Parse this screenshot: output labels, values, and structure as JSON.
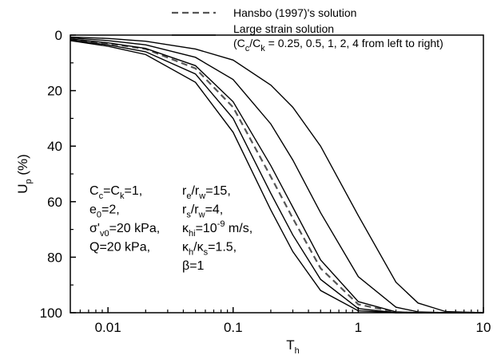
{
  "chart_data": {
    "type": "line",
    "xlog": true,
    "yinvert": true,
    "xlabel": [
      {
        "text": "T"
      },
      {
        "sub": "h"
      }
    ],
    "ylabel": [
      {
        "text": "U"
      },
      {
        "sub": "p"
      },
      {
        "text": " (%)"
      }
    ],
    "xlim": [
      0.005,
      10
    ],
    "ylim": [
      0,
      100
    ],
    "xticks": [
      0.01,
      0.1,
      1,
      10
    ],
    "yticks": [
      0,
      20,
      40,
      60,
      80,
      100
    ],
    "xminorticks": [
      0.006,
      0.007,
      0.008,
      0.009,
      0.02,
      0.03,
      0.04,
      0.05,
      0.06,
      0.07,
      0.08,
      0.09,
      0.2,
      0.3,
      0.4,
      0.5,
      0.6,
      0.7,
      0.8,
      0.9,
      2,
      3,
      4,
      5,
      6,
      7,
      8,
      9
    ],
    "yminorticks": [
      10,
      30,
      50,
      70,
      90
    ],
    "x": [
      0.005,
      0.01,
      0.02,
      0.05,
      0.1,
      0.2,
      0.3,
      0.5,
      1,
      2,
      3,
      5,
      10
    ],
    "series": [
      {
        "color": "#555555",
        "dashed": true,
        "values": [
          1.5,
          3,
          5,
          12,
          26,
          51,
          66,
          84,
          97,
          99.8,
          100,
          100,
          100
        ]
      },
      {
        "color": "#000000",
        "dashed": false,
        "values": [
          2,
          4,
          7,
          17,
          35,
          63,
          78,
          92,
          99.3,
          100,
          100,
          100,
          100
        ]
      },
      {
        "color": "#000000",
        "dashed": false,
        "values": [
          1.8,
          3.5,
          6,
          14,
          30,
          57,
          72,
          88,
          98.5,
          100,
          100,
          100,
          100
        ]
      },
      {
        "color": "#000000",
        "dashed": false,
        "values": [
          1.4,
          2.8,
          4.8,
          11,
          24,
          47,
          62,
          81,
          96,
          99.7,
          100,
          100,
          100
        ]
      },
      {
        "color": "#000000",
        "dashed": false,
        "values": [
          1,
          2,
          3.5,
          8,
          16,
          32,
          45,
          64,
          87,
          98,
          99.7,
          100,
          100
        ]
      },
      {
        "color": "#000000",
        "dashed": false,
        "values": [
          0.7,
          1.2,
          2.2,
          5,
          9,
          18,
          26,
          40,
          65,
          89,
          96.5,
          99.6,
          100
        ]
      }
    ],
    "legend": [
      {
        "dashed": true,
        "label": [
          {
            "text": "Hansbo (1997)'s solution"
          }
        ]
      },
      {
        "dashed": false,
        "label": [
          {
            "text": "Large strain solution"
          }
        ],
        "note": [
          {
            "text": "(C"
          },
          {
            "sub": "c"
          },
          {
            "text": "/C"
          },
          {
            "sub": "k"
          },
          {
            "text": " = 0.25, 0.5, 1, 2, 4 from left to right)"
          }
        ]
      }
    ],
    "annotations": [
      {
        "lines": [
          [
            {
              "text": "C"
            },
            {
              "sub": "c"
            },
            {
              "text": "=C"
            },
            {
              "sub": "k"
            },
            {
              "text": "=1,"
            }
          ],
          [
            {
              "text": "e"
            },
            {
              "sub": "0"
            },
            {
              "text": "=2,"
            }
          ],
          [
            {
              "text": "σ'"
            },
            {
              "sub": "v0"
            },
            {
              "text": "=20 kPa,"
            }
          ],
          [
            {
              "text": "Q=20 kPa,"
            }
          ]
        ]
      },
      {
        "lines": [
          [
            {
              "text": "r"
            },
            {
              "sub": "e"
            },
            {
              "text": "/r"
            },
            {
              "sub": "w"
            },
            {
              "text": "=15,"
            }
          ],
          [
            {
              "text": "r"
            },
            {
              "sub": "s"
            },
            {
              "text": "/r"
            },
            {
              "sub": "w"
            },
            {
              "text": "=4,"
            }
          ],
          [
            {
              "text": "κ"
            },
            {
              "sub": "hi"
            },
            {
              "text": "=10"
            },
            {
              "sup": "-9"
            },
            {
              "text": " m/s,"
            }
          ],
          [
            {
              "text": "κ"
            },
            {
              "sub": "h"
            },
            {
              "text": "/κ"
            },
            {
              "sub": "s"
            },
            {
              "text": "=1.5,"
            }
          ],
          [
            {
              "text": "β=1"
            }
          ]
        ]
      }
    ]
  }
}
